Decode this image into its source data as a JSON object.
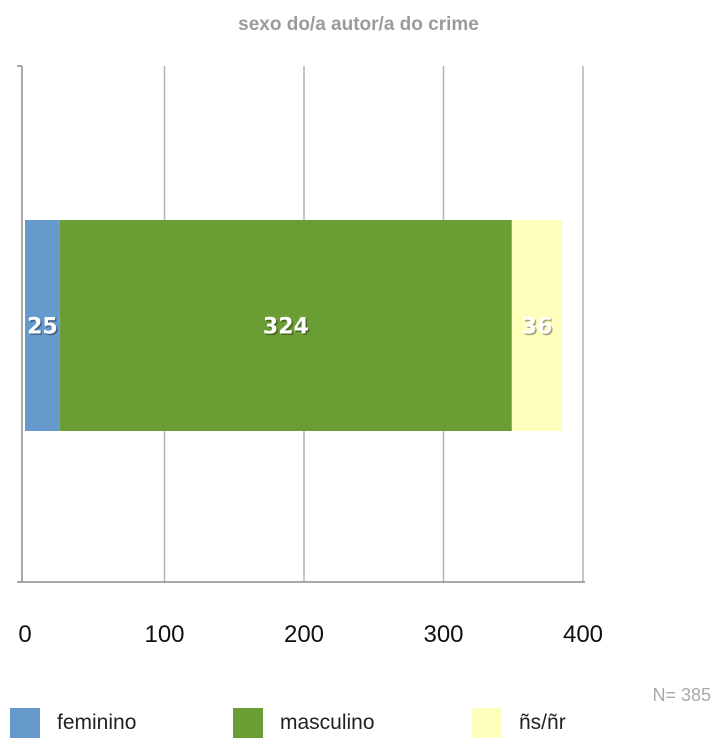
{
  "chart_data": {
    "type": "bar",
    "orientation": "horizontal",
    "stacked": true,
    "title": "sexo do/a autor/a do crime",
    "xlim": [
      0,
      400
    ],
    "x_ticks": [
      "0",
      "100",
      "200",
      "300",
      "400"
    ],
    "grid": true,
    "legend_position": "bottom",
    "note": "N= 385",
    "series": [
      {
        "name": "feminino",
        "values": [
          25
        ],
        "color": "#6699cc",
        "label": "25"
      },
      {
        "name": "masculino",
        "values": [
          324
        ],
        "color": "#6a9e34",
        "label": "324"
      },
      {
        "name": "ñs/ñr",
        "values": [
          36
        ],
        "color": "#ffffbd",
        "label": "36"
      }
    ]
  }
}
